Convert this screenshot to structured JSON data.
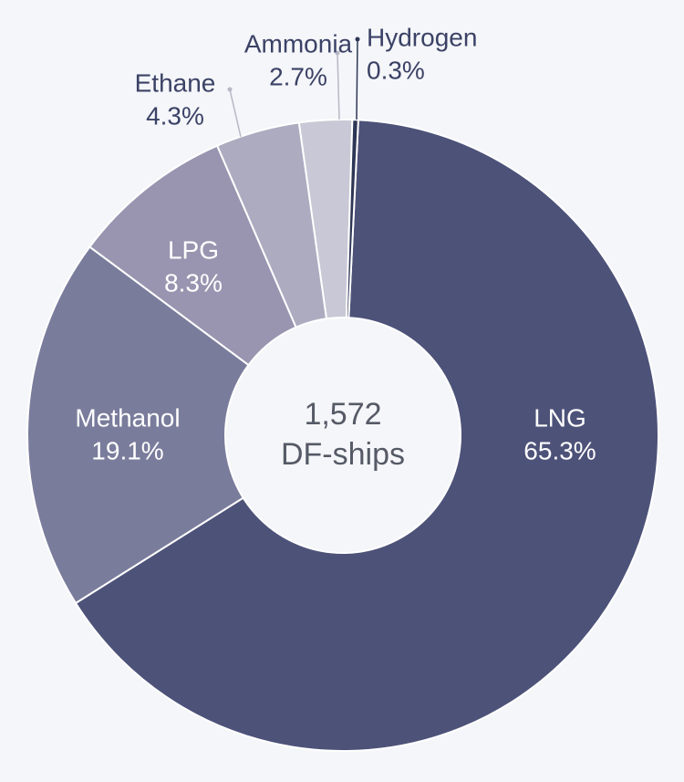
{
  "chart_data": {
    "type": "donut",
    "categories": [
      "LNG",
      "Methanol",
      "LPG",
      "Ethane",
      "Ammonia",
      "Hydrogen"
    ],
    "values": [
      65.3,
      19.1,
      8.3,
      4.3,
      2.7,
      0.3
    ],
    "value_labels": [
      "65.3%",
      "19.1%",
      "8.3%",
      "4.3%",
      "2.7%",
      "0.3%"
    ],
    "colors": [
      "#4d5279",
      "#7a7c9c",
      "#9995b0",
      "#adabc0",
      "#c8c8d6",
      "#2e3656"
    ],
    "center_text": [
      "1,572",
      "DF-ships"
    ]
  }
}
